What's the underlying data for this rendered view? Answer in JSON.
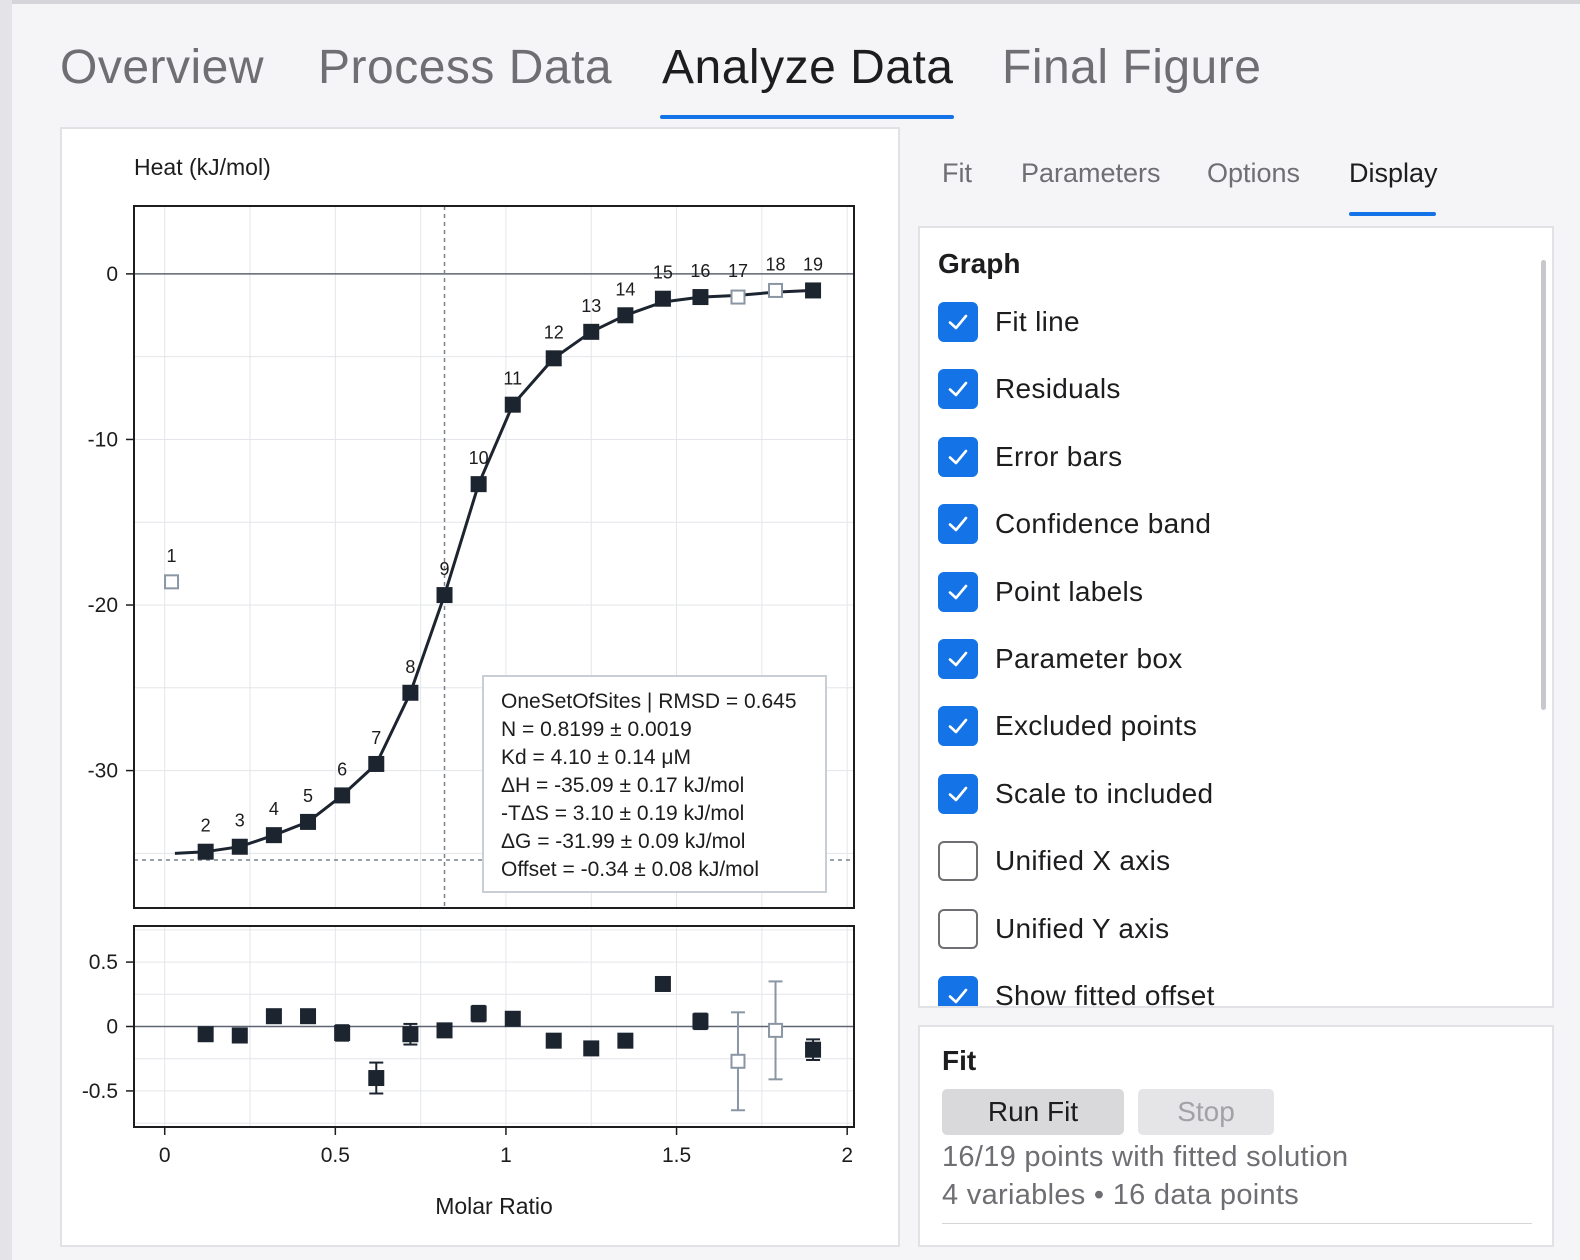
{
  "main_tabs": [
    {
      "label": "Overview",
      "active": false
    },
    {
      "label": "Process Data",
      "active": false
    },
    {
      "label": "Analyze Data",
      "active": true
    },
    {
      "label": "Final Figure",
      "active": false
    }
  ],
  "sub_tabs": [
    {
      "label": "Fit",
      "active": false
    },
    {
      "label": "Parameters",
      "active": false
    },
    {
      "label": "Options",
      "active": false
    },
    {
      "label": "Display",
      "active": true
    }
  ],
  "graph_panel": {
    "title": "Graph",
    "options": [
      {
        "label": "Fit line",
        "checked": true
      },
      {
        "label": "Residuals",
        "checked": true
      },
      {
        "label": "Error bars",
        "checked": true
      },
      {
        "label": "Confidence band",
        "checked": true
      },
      {
        "label": "Point labels",
        "checked": true
      },
      {
        "label": "Parameter box",
        "checked": true
      },
      {
        "label": "Excluded points",
        "checked": true
      },
      {
        "label": "Scale to included",
        "checked": true
      },
      {
        "label": "Unified X axis",
        "checked": false
      },
      {
        "label": "Unified Y axis",
        "checked": false
      },
      {
        "label": "Show fitted offset",
        "checked": true
      }
    ]
  },
  "fit_panel": {
    "title": "Fit",
    "run_label": "Run Fit",
    "stop_label": "Stop",
    "status": "16/19 points with fitted solution",
    "summary": "4 variables • 16 data points"
  },
  "colors": {
    "accent": "#1473e6",
    "data": "#1c2430",
    "excluded": "#8a96a3"
  },
  "chart_data": {
    "type": "scatter",
    "ylabel": "Heat (kJ/mol)",
    "xlabel": "Molar Ratio",
    "xlim": [
      -0.09,
      2.02
    ],
    "ylim": [
      -38.3,
      4.1
    ],
    "xticks": [
      0,
      0.5,
      1,
      1.5,
      2
    ],
    "xtick_labels": [
      "0",
      "0.5",
      "1",
      "1.5",
      "2"
    ],
    "yticks": [
      0,
      -10,
      -20,
      -30
    ],
    "ytick_labels": [
      "0",
      "-10",
      "-20",
      "-30"
    ],
    "dashed_x": 0.82,
    "dashed_y": -35.4,
    "points": [
      {
        "label": "1",
        "x": 0.02,
        "y": -18.6,
        "excluded": true
      },
      {
        "label": "2",
        "x": 0.12,
        "y": -34.9,
        "excluded": false
      },
      {
        "label": "3",
        "x": 0.22,
        "y": -34.6,
        "excluded": false
      },
      {
        "label": "4",
        "x": 0.32,
        "y": -33.9,
        "excluded": false
      },
      {
        "label": "5",
        "x": 0.42,
        "y": -33.1,
        "excluded": false
      },
      {
        "label": "6",
        "x": 0.52,
        "y": -31.5,
        "excluded": false
      },
      {
        "label": "7",
        "x": 0.62,
        "y": -29.6,
        "excluded": false
      },
      {
        "label": "8",
        "x": 0.72,
        "y": -25.3,
        "excluded": false
      },
      {
        "label": "9",
        "x": 0.82,
        "y": -19.4,
        "excluded": false
      },
      {
        "label": "10",
        "x": 0.92,
        "y": -12.7,
        "excluded": false
      },
      {
        "label": "11",
        "x": 1.02,
        "y": -7.9,
        "excluded": false
      },
      {
        "label": "12",
        "x": 1.14,
        "y": -5.1,
        "excluded": false
      },
      {
        "label": "13",
        "x": 1.25,
        "y": -3.5,
        "excluded": false
      },
      {
        "label": "14",
        "x": 1.35,
        "y": -2.5,
        "excluded": false
      },
      {
        "label": "15",
        "x": 1.46,
        "y": -1.5,
        "excluded": false
      },
      {
        "label": "16",
        "x": 1.57,
        "y": -1.4,
        "excluded": false
      },
      {
        "label": "17",
        "x": 1.68,
        "y": -1.4,
        "excluded": true
      },
      {
        "label": "18",
        "x": 1.79,
        "y": -1.0,
        "excluded": true
      },
      {
        "label": "19",
        "x": 1.9,
        "y": -1.0,
        "excluded": false
      }
    ],
    "fit_line": [
      [
        0.03,
        -35.0
      ],
      [
        0.12,
        -34.9
      ],
      [
        0.22,
        -34.6
      ],
      [
        0.32,
        -33.9
      ],
      [
        0.42,
        -33.1
      ],
      [
        0.52,
        -31.5
      ],
      [
        0.62,
        -29.6
      ],
      [
        0.72,
        -25.3
      ],
      [
        0.82,
        -19.4
      ],
      [
        0.92,
        -12.7
      ],
      [
        1.02,
        -7.9
      ],
      [
        1.14,
        -5.1
      ],
      [
        1.25,
        -3.5
      ],
      [
        1.35,
        -2.5
      ],
      [
        1.46,
        -1.7
      ],
      [
        1.57,
        -1.4
      ],
      [
        1.68,
        -1.3
      ],
      [
        1.79,
        -1.1
      ],
      [
        1.9,
        -1.0
      ]
    ],
    "parameter_box": [
      "OneSetOfSites | RMSD = 0.645",
      "N = 0.8199 ± 0.0019",
      "Kd = 4.10 ± 0.14 μM",
      "ΔH = -35.09 ± 0.17 kJ/mol",
      "-TΔS = 3.10 ± 0.19 kJ/mol",
      "ΔG = -31.99 ± 0.09 kJ/mol",
      "Offset = -0.34 ± 0.08 kJ/mol"
    ],
    "residuals": {
      "ylim": [
        -0.78,
        0.78
      ],
      "yticks": [
        0.5,
        0,
        -0.5
      ],
      "ytick_labels": [
        "0.5",
        "0",
        "-0.5"
      ],
      "points": [
        {
          "x": 0.12,
          "y": -0.06,
          "err": 0,
          "excluded": false
        },
        {
          "x": 0.22,
          "y": -0.07,
          "err": 0,
          "excluded": false
        },
        {
          "x": 0.32,
          "y": 0.08,
          "err": 0,
          "excluded": false
        },
        {
          "x": 0.42,
          "y": 0.08,
          "err": 0,
          "excluded": false
        },
        {
          "x": 0.52,
          "y": -0.05,
          "err": 0.06,
          "excluded": false
        },
        {
          "x": 0.62,
          "y": -0.4,
          "err": 0.12,
          "excluded": false
        },
        {
          "x": 0.72,
          "y": -0.06,
          "err": 0.08,
          "excluded": false
        },
        {
          "x": 0.82,
          "y": -0.03,
          "err": 0.05,
          "excluded": false
        },
        {
          "x": 0.92,
          "y": 0.1,
          "err": 0.06,
          "excluded": false
        },
        {
          "x": 1.02,
          "y": 0.06,
          "err": 0,
          "excluded": false
        },
        {
          "x": 1.14,
          "y": -0.11,
          "err": 0,
          "excluded": false
        },
        {
          "x": 1.25,
          "y": -0.17,
          "err": 0,
          "excluded": false
        },
        {
          "x": 1.35,
          "y": -0.11,
          "err": 0,
          "excluded": false
        },
        {
          "x": 1.46,
          "y": 0.33,
          "err": 0,
          "excluded": false
        },
        {
          "x": 1.57,
          "y": 0.04,
          "err": 0.06,
          "excluded": false
        },
        {
          "x": 1.68,
          "y": -0.27,
          "err": 0.38,
          "excluded": true
        },
        {
          "x": 1.79,
          "y": -0.03,
          "err": 0.38,
          "excluded": true
        },
        {
          "x": 1.9,
          "y": -0.18,
          "err": 0.08,
          "excluded": false
        }
      ]
    }
  }
}
